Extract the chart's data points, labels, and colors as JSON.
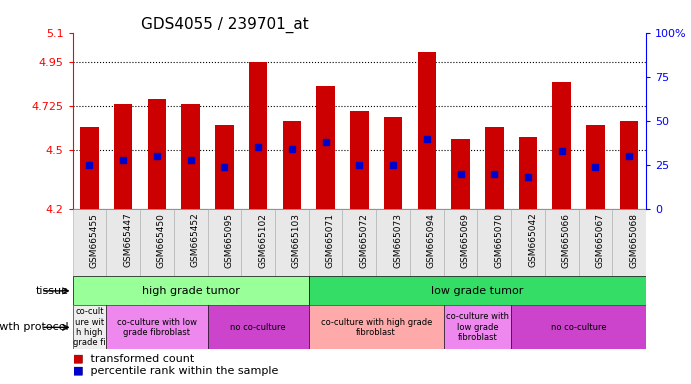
{
  "title": "GDS4055 / 239701_at",
  "samples": [
    "GSM665455",
    "GSM665447",
    "GSM665450",
    "GSM665452",
    "GSM665095",
    "GSM665102",
    "GSM665103",
    "GSM665071",
    "GSM665072",
    "GSM665073",
    "GSM665094",
    "GSM665069",
    "GSM665070",
    "GSM665042",
    "GSM665066",
    "GSM665067",
    "GSM665068"
  ],
  "transformed_count": [
    4.62,
    4.735,
    4.76,
    4.735,
    4.63,
    4.95,
    4.65,
    4.83,
    4.7,
    4.67,
    5.0,
    4.56,
    4.62,
    4.57,
    4.85,
    4.63,
    4.65
  ],
  "percentile_rank": [
    25,
    28,
    30,
    28,
    24,
    35,
    34,
    38,
    25,
    25,
    40,
    20,
    20,
    18,
    33,
    24,
    30
  ],
  "ylim_left": [
    4.2,
    5.1
  ],
  "yticks_left": [
    4.2,
    4.5,
    4.725,
    4.95,
    5.1
  ],
  "ytick_labels_left": [
    "4.2",
    "4.5",
    "4.725",
    "4.95",
    "5.1"
  ],
  "yticks_right": [
    0,
    25,
    50,
    75,
    100
  ],
  "ytick_labels_right": [
    "0",
    "25",
    "50",
    "75",
    "100%"
  ],
  "hgrid_values": [
    4.5,
    4.725,
    4.95
  ],
  "bar_color": "#cc0000",
  "dot_color": "#0000cc",
  "tissue_groups": [
    {
      "label": "high grade tumor",
      "start": 0,
      "end": 7,
      "color": "#99ff99"
    },
    {
      "label": "low grade tumor",
      "start": 7,
      "end": 17,
      "color": "#33dd66"
    }
  ],
  "growth_groups": [
    {
      "label": "co-cult\nure wit\nh high\ngrade fi",
      "start": 0,
      "end": 1,
      "color": "#eeeeee"
    },
    {
      "label": "co-culture with low\ngrade fibroblast",
      "start": 1,
      "end": 4,
      "color": "#ee88ee"
    },
    {
      "label": "no co-culture",
      "start": 4,
      "end": 7,
      "color": "#cc44cc"
    },
    {
      "label": "co-culture with high grade\nfibroblast",
      "start": 7,
      "end": 11,
      "color": "#ffaaaa"
    },
    {
      "label": "co-culture with\nlow grade\nfibroblast",
      "start": 11,
      "end": 13,
      "color": "#ee88ee"
    },
    {
      "label": "no co-culture",
      "start": 13,
      "end": 17,
      "color": "#cc44cc"
    }
  ],
  "tissue_label": "tissue",
  "growth_label": "growth protocol",
  "background_color": "#ffffff",
  "title_fontsize": 11,
  "tick_fontsize": 7,
  "bar_width": 0.55,
  "dot_size": 5
}
